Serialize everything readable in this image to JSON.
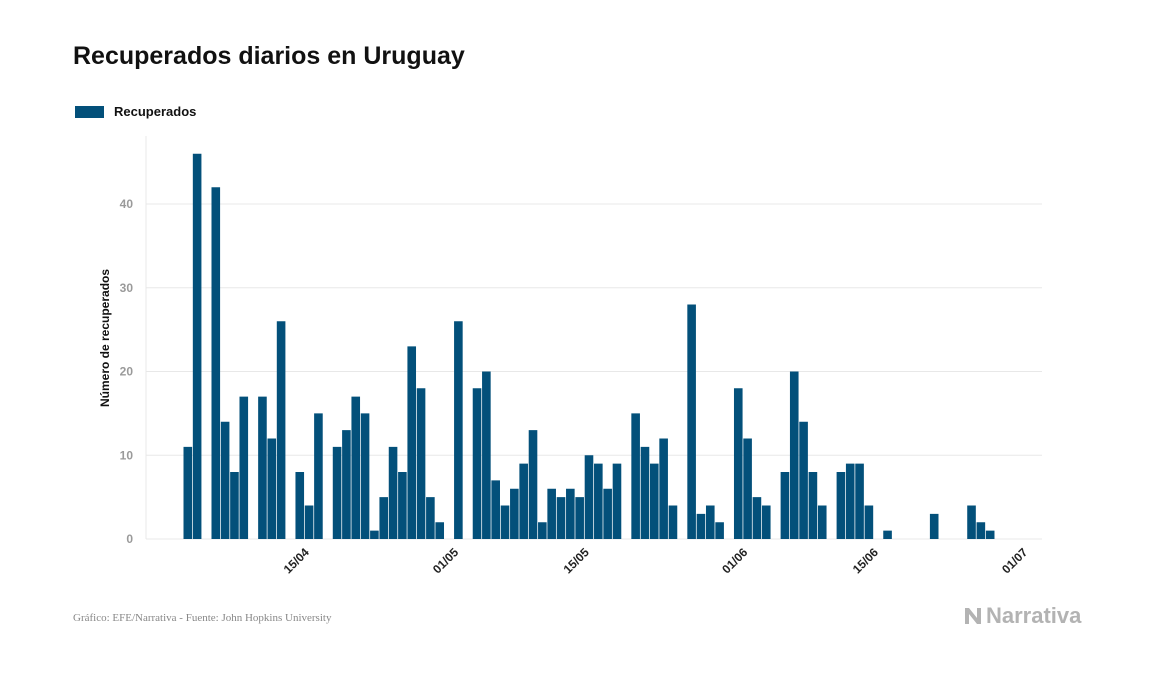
{
  "title": "Recuperados diarios en Uruguay",
  "legend": {
    "label": "Recuperados"
  },
  "colors": {
    "bar": "#03507a",
    "grid": "#e8e8e8",
    "axis_text": "#9a9a9a"
  },
  "source": "Gráfico: EFE/Narrativa - Fuente: John Hopkins University",
  "brand": "Narrativa",
  "chart_data": {
    "type": "bar",
    "title": "Recuperados diarios en Uruguay",
    "ylabel": "Número de recuperados",
    "xlabel": "",
    "ylim": [
      0,
      47
    ],
    "yticks": [
      0,
      10,
      20,
      30,
      40
    ],
    "grid": true,
    "legend_position": "top-left",
    "x_start": "03/04",
    "xticks": [
      {
        "index": 12,
        "label": "15/04"
      },
      {
        "index": 28,
        "label": "01/05"
      },
      {
        "index": 42,
        "label": "15/05"
      },
      {
        "index": 59,
        "label": "01/06"
      },
      {
        "index": 73,
        "label": "15/06"
      },
      {
        "index": 89,
        "label": "01/07"
      }
    ],
    "series": [
      {
        "name": "Recuperados",
        "values": [
          11,
          46,
          0,
          42,
          14,
          8,
          17,
          0,
          17,
          12,
          26,
          0,
          8,
          4,
          15,
          0,
          11,
          13,
          17,
          15,
          1,
          5,
          11,
          8,
          23,
          18,
          5,
          2,
          0,
          26,
          0,
          18,
          20,
          7,
          4,
          6,
          9,
          13,
          2,
          6,
          5,
          6,
          5,
          10,
          9,
          6,
          9,
          0,
          15,
          11,
          9,
          12,
          4,
          0,
          28,
          3,
          4,
          2,
          0,
          18,
          12,
          5,
          4,
          0,
          8,
          20,
          14,
          8,
          4,
          0,
          8,
          9,
          9,
          4,
          0,
          1,
          0,
          0,
          0,
          0,
          3,
          0,
          0,
          0,
          4,
          2,
          1,
          0
        ]
      }
    ]
  }
}
